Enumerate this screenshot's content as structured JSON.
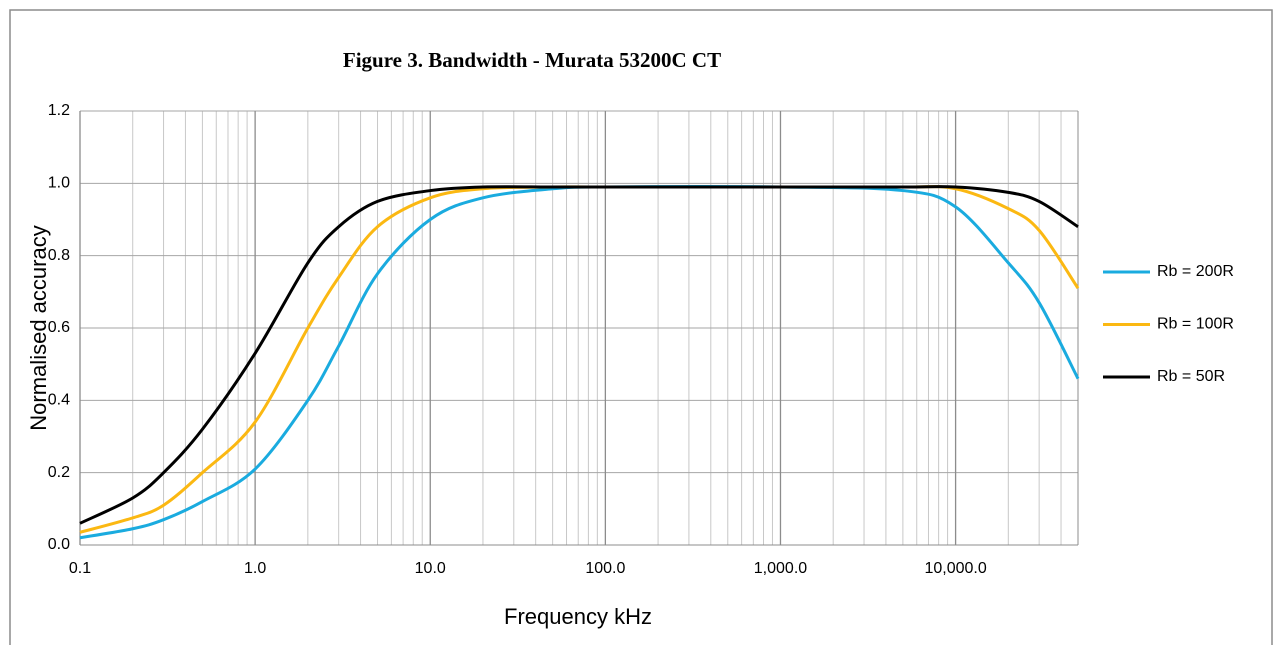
{
  "chart_data": {
    "type": "line",
    "title": "Figure 3. Bandwidth - Murata 53200C CT",
    "x_label": "Frequency kHz",
    "y_label": "Normalised accuracy",
    "x": [
      0.1,
      0.2,
      0.3,
      0.5,
      1,
      2,
      3,
      5,
      10,
      20,
      50,
      100,
      1000,
      5000,
      10000,
      20000,
      30000,
      50000
    ],
    "series": [
      {
        "name": "Rb = 200R",
        "color": "#1aabdf",
        "values": [
          0.02,
          0.045,
          0.07,
          0.12,
          0.21,
          0.4,
          0.55,
          0.75,
          0.9,
          0.96,
          0.985,
          0.99,
          0.99,
          0.98,
          0.935,
          0.78,
          0.67,
          0.46
        ]
      },
      {
        "name": "Rb = 100R",
        "color": "#fbb812",
        "values": [
          0.035,
          0.075,
          0.11,
          0.2,
          0.34,
          0.6,
          0.74,
          0.88,
          0.96,
          0.985,
          0.99,
          0.99,
          0.99,
          0.99,
          0.985,
          0.93,
          0.87,
          0.71
        ]
      },
      {
        "name": "Rb = 50R",
        "color": "#000000",
        "values": [
          0.06,
          0.13,
          0.2,
          0.32,
          0.53,
          0.78,
          0.88,
          0.95,
          0.98,
          0.99,
          0.99,
          0.99,
          0.99,
          0.99,
          0.99,
          0.975,
          0.95,
          0.88
        ]
      }
    ],
    "xlim": [
      0.1,
      50000
    ],
    "xticks": [
      {
        "value": 0.1,
        "label": "0.1"
      },
      {
        "value": 1,
        "label": "1.0"
      },
      {
        "value": 10,
        "label": "10.0"
      },
      {
        "value": 100,
        "label": "100.0"
      },
      {
        "value": 1000,
        "label": "1,000.0"
      },
      {
        "value": 10000,
        "label": "10,000.0"
      }
    ],
    "ylim": [
      0,
      1.2
    ],
    "yticks": [
      {
        "value": 0,
        "label": "0.0"
      },
      0.2,
      0.4,
      0.6,
      0.8,
      {
        "value": 1,
        "label": "1.0"
      },
      1.2
    ],
    "x_log": true,
    "grid": true,
    "minor_grid": true,
    "legend": "right"
  }
}
